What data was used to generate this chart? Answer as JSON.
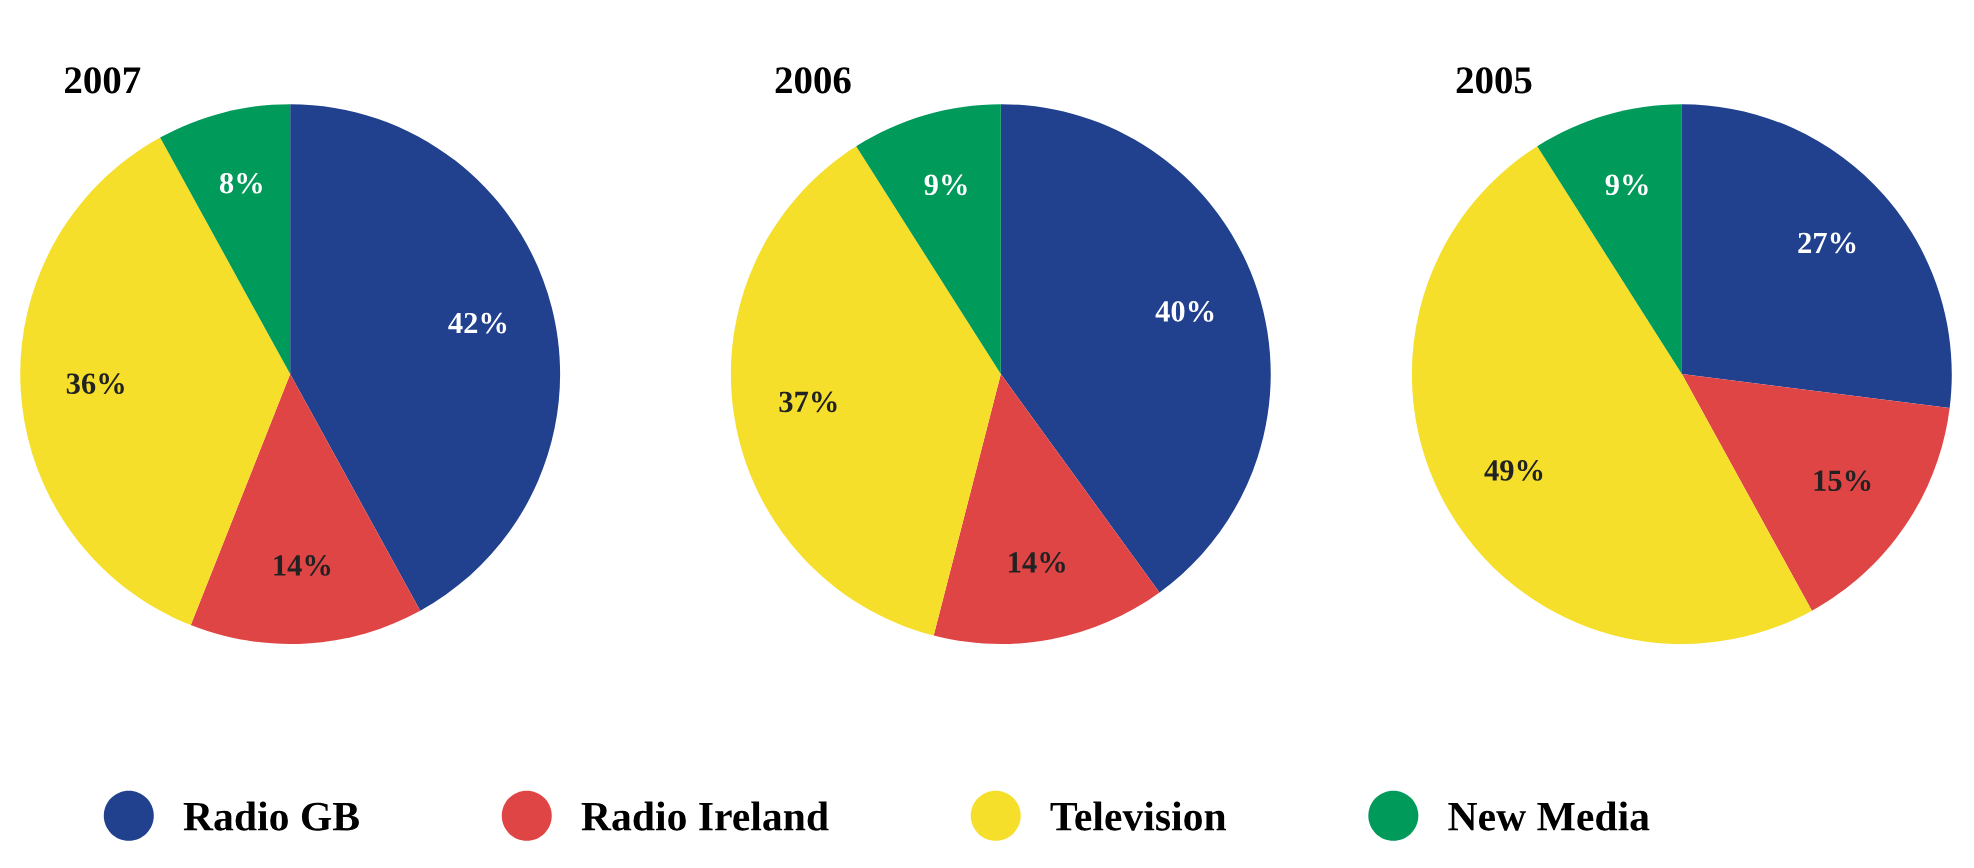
{
  "chart_data": [
    {
      "type": "pie",
      "title": "2007",
      "categories": [
        "Radio GB",
        "Radio Ireland",
        "Television",
        "New Media"
      ],
      "values": [
        42,
        14,
        36,
        8
      ],
      "colors": [
        "#21418f",
        "#e04545",
        "#f5df2a",
        "#009a5b"
      ],
      "value_labels": [
        "42%",
        "14%",
        "36%",
        "8%"
      ],
      "legend": "bottom"
    },
    {
      "type": "pie",
      "title": "2006",
      "categories": [
        null,
        null,
        null,
        null
      ],
      "values": [
        40,
        14,
        37,
        9
      ],
      "colors": [
        "#21418f",
        "#e04545",
        "#f5df2a",
        "#009a5b"
      ],
      "value_labels": [
        "40%",
        "14%",
        "37%",
        "9%"
      ]
    },
    {
      "type": "pie",
      "title": "2005",
      "categories": [
        null,
        null,
        null,
        null
      ],
      "values": [
        27,
        15,
        49,
        9
      ],
      "colors": [
        "#21418f",
        "#e04545",
        "#f5df2a",
        "#009a5b"
      ],
      "value_labels": [
        "27%",
        "15%",
        "49%",
        "9%"
      ]
    }
  ]
}
